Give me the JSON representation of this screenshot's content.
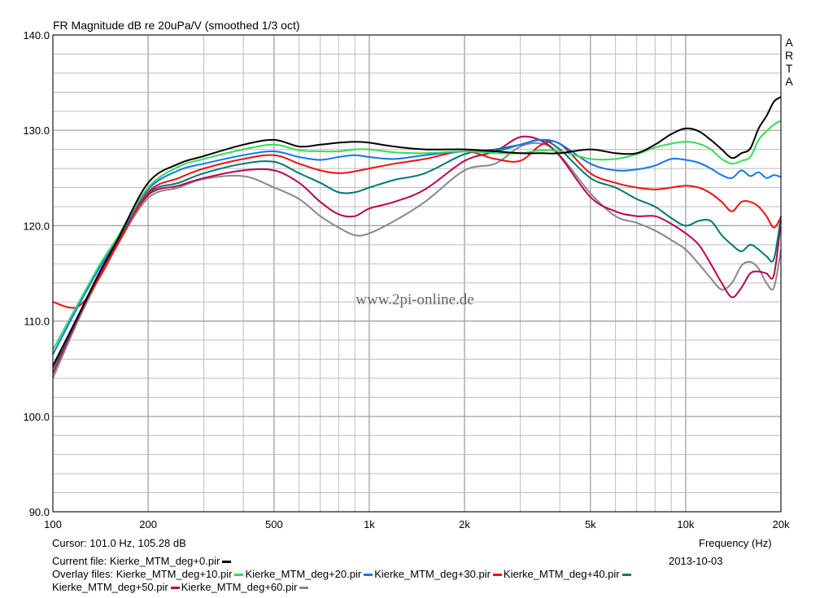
{
  "title": "FR Magnitude dB re 20uPa/V (smoothed 1/3 oct)",
  "brand_letters": [
    "A",
    "R",
    "T",
    "A"
  ],
  "watermark": "www.2pi-online.de",
  "cursor_text": "Cursor: 101.0 Hz, 105.28 dB",
  "xlabel": "Frequency (Hz)",
  "date": "2013-10-03",
  "current_file": {
    "prefix": "Current file: ",
    "name": "Kierke_MTM_deg+0.pir",
    "color": "#000000"
  },
  "overlay_prefix": "Overlay files: ",
  "overlay_files": [
    {
      "name": "Kierke_MTM_deg+10.pir",
      "color": "#33dd55"
    },
    {
      "name": "Kierke_MTM_deg+20.pir",
      "color": "#1177ee"
    },
    {
      "name": "Kierke_MTM_deg+30.pir",
      "color": "#ee1111"
    },
    {
      "name": "Kierke_MTM_deg+40.pir",
      "color": "#007777"
    },
    {
      "name": "Kierke_MTM_deg+50.pir",
      "color": "#bb0055"
    },
    {
      "name": "Kierke_MTM_deg+60.pir",
      "color": "#888888"
    }
  ],
  "colors": {
    "grid": "#bdbdbd",
    "axis": "#000000",
    "background": "#ffffff"
  },
  "chart_data": {
    "type": "line",
    "title": "FR Magnitude dB re 20uPa/V (smoothed 1/3 oct)",
    "xlabel": "Frequency (Hz)",
    "ylabel": "",
    "xscale": "log",
    "xlim": [
      100,
      20000
    ],
    "ylim": [
      90,
      140
    ],
    "grid": true,
    "x_ticks": [
      100,
      200,
      500,
      1000,
      2000,
      5000,
      10000,
      20000
    ],
    "x_tick_labels": [
      "100",
      "200",
      "500",
      "1k",
      "2k",
      "5k",
      "10k",
      "20k"
    ],
    "y_ticks": [
      90,
      100,
      110,
      120,
      130,
      140
    ],
    "y_tick_labels": [
      "90.0",
      "100.0",
      "110.0",
      "120.0",
      "130.0",
      "140.0"
    ],
    "x": [
      100,
      120,
      140,
      160,
      200,
      250,
      300,
      400,
      500,
      600,
      700,
      800,
      900,
      1000,
      1200,
      1500,
      2000,
      2500,
      3000,
      3500,
      4000,
      5000,
      6000,
      7000,
      8000,
      9000,
      10000,
      11000,
      12000,
      13000,
      14000,
      15000,
      16000,
      17000,
      18000,
      19000,
      20000
    ],
    "series": [
      {
        "name": "Kierke_MTM_deg+0.pir",
        "color": "#000000",
        "values": [
          105.3,
          110.5,
          115.0,
          118.5,
          124.5,
          126.5,
          127.3,
          128.5,
          129.0,
          128.3,
          128.5,
          128.7,
          128.8,
          128.7,
          128.3,
          128.0,
          128.0,
          127.8,
          127.6,
          127.6,
          127.6,
          128.0,
          127.6,
          127.6,
          128.5,
          129.6,
          130.2,
          129.9,
          129.0,
          128.0,
          127.1,
          127.6,
          128.1,
          130.2,
          131.5,
          133.0,
          133.5
        ]
      },
      {
        "name": "Kierke_MTM_deg+10.pir",
        "color": "#33dd55",
        "values": [
          107.0,
          111.8,
          115.8,
          118.8,
          124.0,
          126.2,
          127.0,
          128.0,
          128.5,
          127.9,
          127.8,
          127.8,
          128.0,
          128.0,
          127.7,
          127.6,
          127.8,
          127.6,
          127.6,
          127.9,
          127.8,
          127.0,
          127.0,
          127.5,
          128.2,
          128.6,
          128.8,
          128.6,
          128.0,
          127.0,
          126.5,
          126.8,
          127.2,
          129.0,
          129.9,
          130.6,
          131.0
        ]
      },
      {
        "name": "Kierke_MTM_deg+20.pir",
        "color": "#1177ee",
        "values": [
          106.5,
          111.5,
          115.5,
          118.6,
          123.8,
          125.8,
          126.5,
          127.4,
          127.8,
          127.2,
          126.9,
          127.2,
          127.4,
          127.2,
          127.0,
          127.4,
          127.8,
          127.8,
          128.5,
          129.0,
          128.6,
          126.5,
          125.8,
          125.9,
          126.3,
          127.0,
          126.9,
          126.6,
          126.0,
          125.3,
          125.0,
          125.8,
          125.2,
          125.6,
          125.0,
          125.3,
          125.1
        ]
      },
      {
        "name": "Kierke_MTM_deg+30.pir",
        "color": "#ee1111",
        "values": [
          112.0,
          111.5,
          114.5,
          118.0,
          123.5,
          125.0,
          126.0,
          127.0,
          127.4,
          126.5,
          125.8,
          125.5,
          125.7,
          126.0,
          126.5,
          127.0,
          127.8,
          127.0,
          126.8,
          128.5,
          128.6,
          125.5,
          124.5,
          124.0,
          123.8,
          124.0,
          124.2,
          124.0,
          123.4,
          122.5,
          121.5,
          122.5,
          122.5,
          122.0,
          121.0,
          119.8,
          120.9
        ]
      },
      {
        "name": "Kierke_MTM_deg+40.pir",
        "color": "#007777",
        "values": [
          105.0,
          110.5,
          115.0,
          118.5,
          123.4,
          124.5,
          125.5,
          126.5,
          126.7,
          125.5,
          124.5,
          123.5,
          123.5,
          124.0,
          124.8,
          125.5,
          127.5,
          128.0,
          128.5,
          129.0,
          128.0,
          125.0,
          124.0,
          122.8,
          122.0,
          120.8,
          120.0,
          120.5,
          120.5,
          119.0,
          118.0,
          117.3,
          118.0,
          117.5,
          116.8,
          116.5,
          121.0
        ]
      },
      {
        "name": "Kierke_MTM_deg+50.pir",
        "color": "#bb0055",
        "values": [
          104.5,
          110.3,
          114.8,
          118.3,
          123.2,
          124.2,
          125.0,
          125.8,
          125.8,
          124.5,
          122.5,
          121.2,
          121.0,
          121.8,
          122.5,
          123.8,
          126.8,
          127.8,
          129.3,
          128.9,
          127.3,
          123.0,
          121.5,
          121.0,
          121.0,
          120.2,
          119.2,
          118.0,
          116.0,
          114.0,
          112.5,
          113.5,
          115.0,
          115.2,
          115.0,
          114.8,
          120.5
        ]
      },
      {
        "name": "Kierke_MTM_deg+60.pir",
        "color": "#888888",
        "values": [
          104.0,
          110.0,
          114.5,
          118.0,
          122.9,
          124.0,
          124.9,
          125.2,
          124.0,
          122.8,
          121.0,
          119.8,
          119.0,
          119.2,
          120.5,
          122.5,
          125.8,
          126.5,
          128.3,
          128.6,
          127.4,
          123.4,
          121.0,
          120.3,
          119.5,
          118.5,
          117.5,
          116.0,
          114.5,
          113.3,
          114.0,
          115.8,
          116.2,
          115.5,
          114.0,
          113.5,
          117.5
        ]
      }
    ]
  }
}
